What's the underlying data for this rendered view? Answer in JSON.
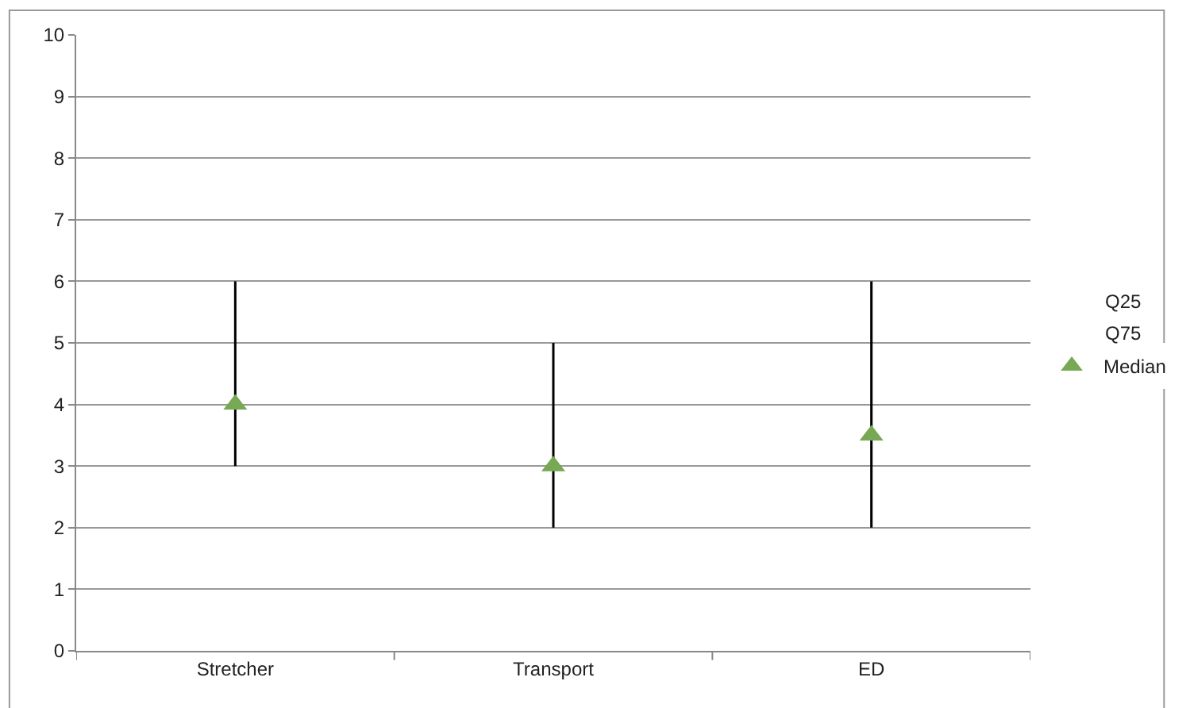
{
  "chart_data": {
    "type": "scatter",
    "categories": [
      "Stretcher",
      "Transport",
      "ED"
    ],
    "series": [
      {
        "name": "Median",
        "marker": "triangle",
        "color": "#77a854",
        "values": [
          4,
          3,
          3.5
        ],
        "errors": [
          [
            3,
            6
          ],
          [
            2,
            5
          ],
          [
            2,
            6
          ]
        ]
      }
    ],
    "annotations": [
      "Q25",
      "Q75"
    ],
    "ylim": [
      0,
      10
    ],
    "yticks": [
      0,
      1,
      2,
      3,
      4,
      5,
      6,
      7,
      8,
      9,
      10
    ],
    "grid": "y",
    "legend": "right"
  }
}
